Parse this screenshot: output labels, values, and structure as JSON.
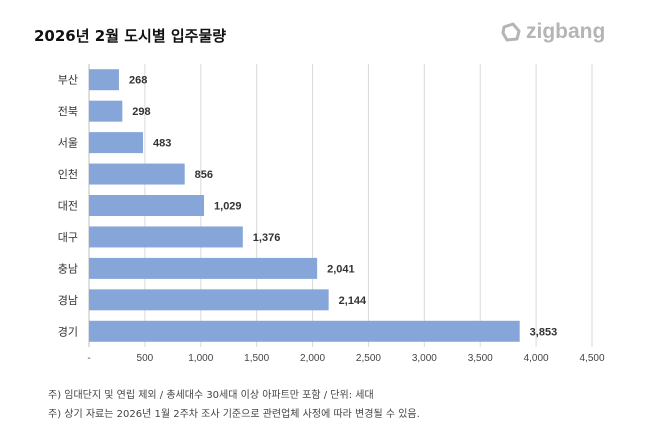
{
  "title": "2026년 2월 도시별 입주물량",
  "logo": "zigbang",
  "notes": [
    "주) 임대단지 및 연립 제외 / 총세대수 30세대 이상 아파트만 포함 / 단위: 세대",
    "주) 상기 자료는 2026년 1월 2주차 조사 기준으로 관련업체 사정에 따라 변경될 수 있음."
  ],
  "chart_data": {
    "type": "bar",
    "orientation": "horizontal",
    "categories": [
      "부산",
      "전북",
      "서울",
      "인천",
      "대전",
      "대구",
      "충남",
      "경남",
      "경기"
    ],
    "values": [
      268,
      298,
      483,
      856,
      1029,
      1376,
      2041,
      2144,
      3853
    ],
    "value_labels": [
      "268",
      "298",
      "483",
      "856",
      "1,029",
      "1,376",
      "2,041",
      "2,144",
      "3,853"
    ],
    "xlim": [
      0,
      4500
    ],
    "xticks": [
      0,
      500,
      1000,
      1500,
      2000,
      2500,
      3000,
      3500,
      4000,
      4500
    ],
    "xtick_labels": [
      "-",
      "500",
      "1,000",
      "1,500",
      "2,000",
      "2,500",
      "3,000",
      "3,500",
      "4,000",
      "4,500"
    ],
    "grid": "vertical",
    "bar_color": "#86a6d9"
  }
}
